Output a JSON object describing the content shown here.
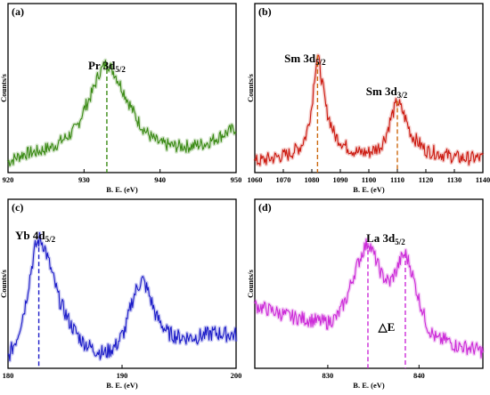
{
  "chart_data": [
    {
      "type": "line",
      "panel_label": "(a)",
      "ylabel": "Counts/s",
      "xlabel": "B. E. (eV)",
      "xlim": [
        920,
        950
      ],
      "xticks": [
        920,
        930,
        940,
        950
      ],
      "color": "#3a8a14",
      "peaks": [
        {
          "x": 933.0,
          "label": "Pr 3d",
          "sub": "5/2"
        }
      ],
      "x": [
        920,
        922,
        924,
        926,
        928,
        929,
        930,
        931,
        932,
        933,
        934,
        935,
        936,
        937,
        938,
        939,
        940,
        942,
        944,
        946,
        948,
        950
      ],
      "y": [
        18,
        21,
        22,
        24,
        28,
        31,
        38,
        44,
        52,
        56,
        52,
        46,
        40,
        34,
        30,
        27,
        25,
        24,
        24,
        25,
        28,
        31
      ]
    },
    {
      "type": "line",
      "panel_label": "(b)",
      "ylabel": "Counts/s",
      "xlabel": "B. E. (eV)",
      "xlim": [
        1060,
        1140
      ],
      "xticks": [
        1060,
        1070,
        1080,
        1090,
        1100,
        1110,
        1120,
        1130,
        1140
      ],
      "color": "#cc1a10",
      "peaks": [
        {
          "x": 1082,
          "label": "Sm 3d",
          "sub": "5/2"
        },
        {
          "x": 1110,
          "label": "Sm 3d",
          "sub": "3/2"
        }
      ],
      "x": [
        1060,
        1066,
        1072,
        1076,
        1078,
        1080,
        1081,
        1082,
        1083,
        1085,
        1088,
        1092,
        1096,
        1100,
        1104,
        1106,
        1108,
        1110,
        1112,
        1115,
        1120,
        1126,
        1132,
        1140
      ],
      "y": [
        16,
        18,
        20,
        24,
        30,
        45,
        62,
        72,
        64,
        44,
        30,
        24,
        21,
        21,
        24,
        30,
        40,
        48,
        42,
        30,
        22,
        20,
        18,
        18
      ]
    },
    {
      "type": "line",
      "panel_label": "(c)",
      "ylabel": "Counts/s",
      "xlabel": "B. E. (eV)",
      "xlim": [
        180,
        200
      ],
      "xticks": [
        180,
        190,
        200
      ],
      "color": "#1c1cc8",
      "peaks": [
        {
          "x": 182.7,
          "label": "Yb 4d",
          "sub": "5/2"
        }
      ],
      "x": [
        180,
        180.8,
        181.5,
        182,
        182.4,
        182.8,
        183.2,
        183.8,
        184.5,
        185.5,
        186.5,
        187.5,
        188.5,
        189.5,
        190.3,
        190.8,
        191.3,
        191.8,
        192.3,
        193,
        194,
        195,
        196.5,
        198,
        200
      ],
      "y": [
        20,
        30,
        45,
        62,
        74,
        78,
        74,
        62,
        48,
        36,
        28,
        24,
        22,
        26,
        34,
        46,
        54,
        58,
        52,
        40,
        32,
        30,
        30,
        32,
        31
      ]
    },
    {
      "type": "line",
      "panel_label": "(d)",
      "ylabel": "Counts/s",
      "xlabel": "B. E. (eV)",
      "xlim": [
        822,
        847
      ],
      "xticks": [
        830,
        840
      ],
      "color": "#cc2bd8",
      "peaks": [
        {
          "x": 834.4,
          "label": "La 3d",
          "sub": "5/2"
        },
        {
          "x": 838.5
        }
      ],
      "annotation": "△E",
      "x": [
        822,
        824,
        826,
        828,
        830,
        831,
        832,
        833,
        834,
        834.5,
        835,
        836,
        836.8,
        837.5,
        838,
        838.5,
        839,
        840,
        841,
        842,
        843,
        844,
        846,
        847
      ],
      "y": [
        42,
        40,
        38,
        37,
        36,
        38,
        44,
        54,
        62,
        64,
        60,
        52,
        50,
        54,
        58,
        60,
        56,
        44,
        34,
        30,
        30,
        28,
        27,
        26
      ]
    }
  ]
}
